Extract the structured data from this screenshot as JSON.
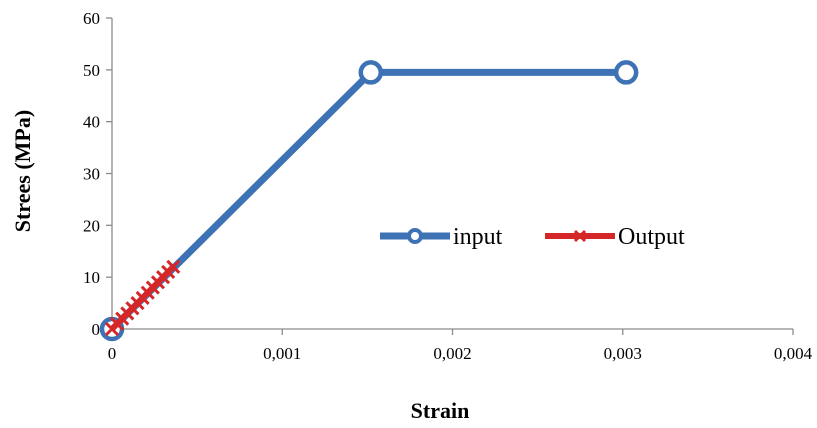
{
  "chart_data": {
    "type": "scatter",
    "title": "",
    "xlabel": "Strain",
    "ylabel": "Strees (MPa)",
    "xlim": [
      0,
      0.004
    ],
    "ylim": [
      0,
      60
    ],
    "x_ticks": [
      0,
      0.001,
      0.002,
      0.003,
      0.004
    ],
    "x_tick_labels": [
      "0",
      "0,001",
      "0,002",
      "0,003",
      "0,004"
    ],
    "y_ticks": [
      0,
      10,
      20,
      30,
      40,
      50,
      60
    ],
    "y_tick_labels": [
      "0",
      "10",
      "20",
      "30",
      "40",
      "50",
      "60"
    ],
    "grid": false,
    "legend_position": "center-right",
    "series": [
      {
        "name": "input",
        "color": "#3D72B4",
        "marker": "circle",
        "x": [
          0,
          0.00152,
          0.00302
        ],
        "y": [
          0,
          49.5,
          49.5
        ]
      },
      {
        "name": "Output",
        "color": "#D62728",
        "marker": "x",
        "x": [
          0,
          3e-05,
          6e-05,
          9e-05,
          0.00012,
          0.00015,
          0.00018,
          0.00021,
          0.00024,
          0.00027,
          0.0003,
          0.00033,
          0.00036
        ],
        "y": [
          0,
          1,
          2,
          3,
          4,
          5,
          6,
          7,
          8,
          9,
          10,
          11,
          12
        ]
      }
    ]
  }
}
